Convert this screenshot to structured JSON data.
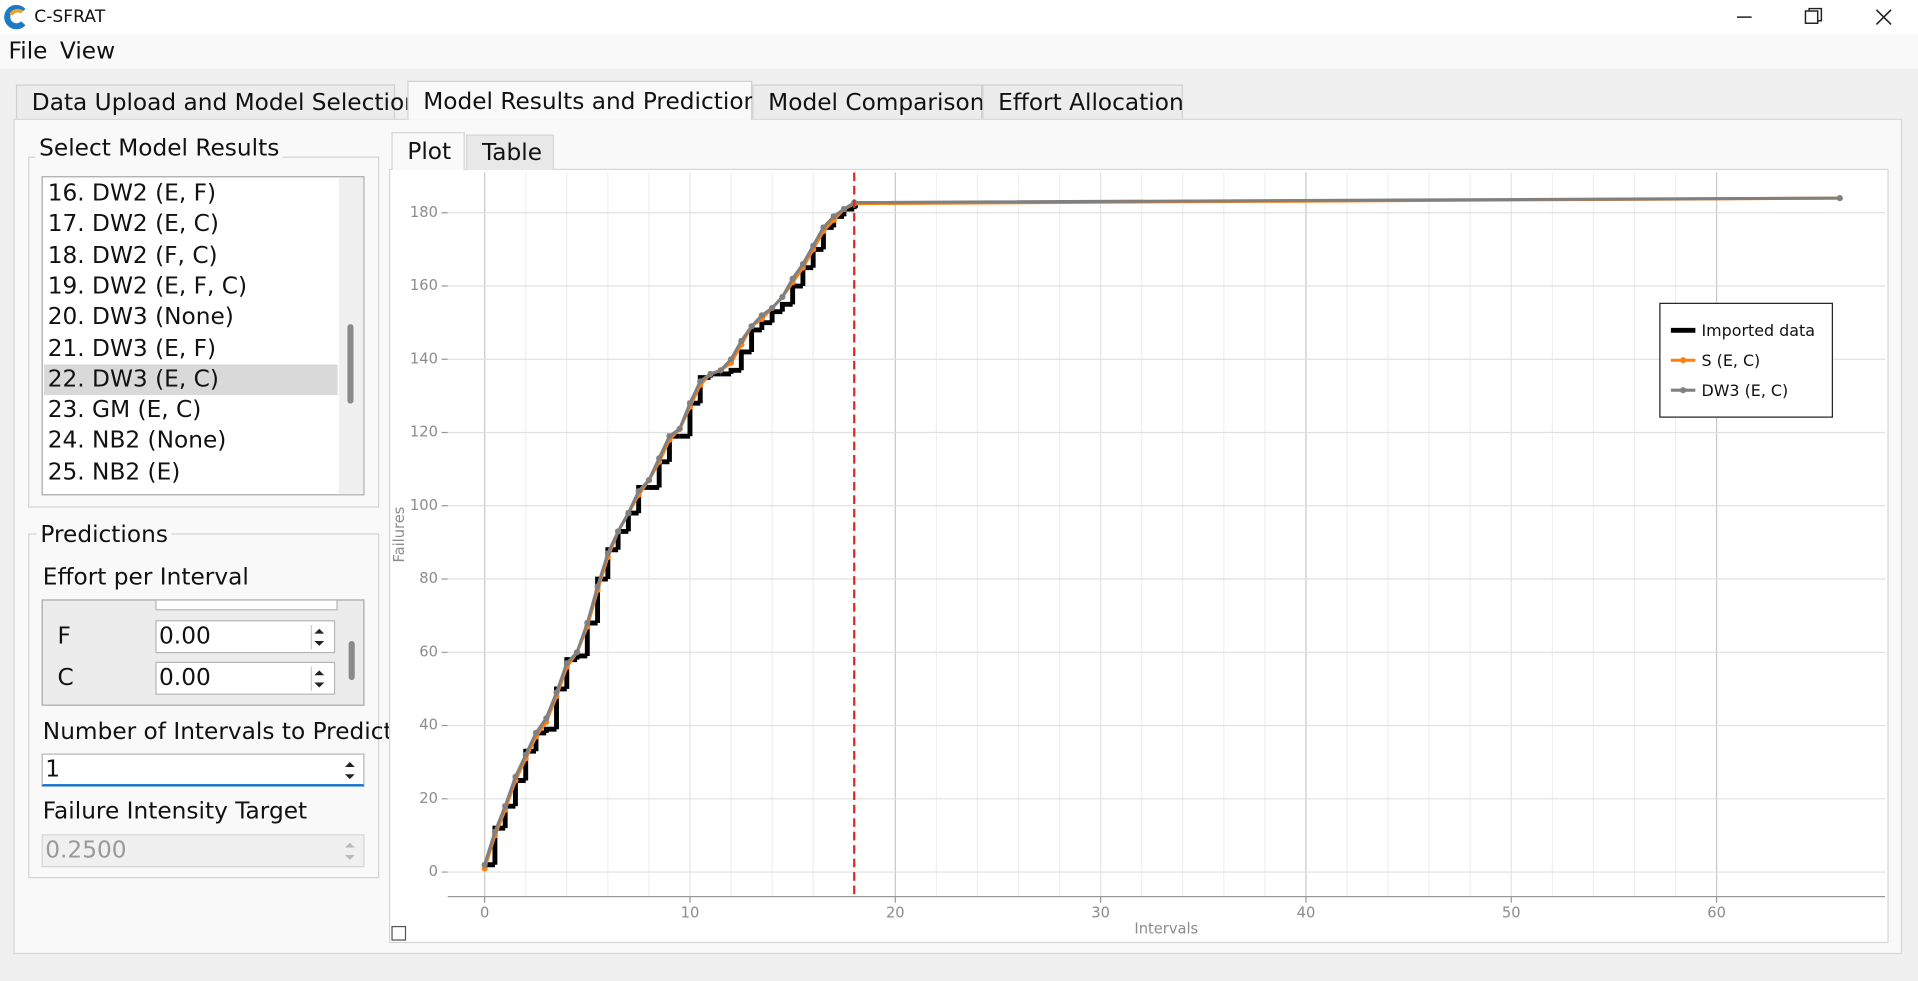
{
  "window": {
    "title": "C-SFRAT"
  },
  "menu": [
    "File",
    "View"
  ],
  "tabs": [
    "Data Upload and Model Selection",
    "Model Results and Predictions",
    "Model Comparison",
    "Effort Allocation"
  ],
  "model_results": {
    "title": "Select Model Results",
    "items": [
      "16. DW2 (E, F)",
      "17. DW2 (E, C)",
      "18. DW2 (F, C)",
      "19. DW2 (E, F, C)",
      "20. DW3 (None)",
      "21. DW3 (E, F)",
      "22. DW3 (E, C)",
      "23. GM (E, C)",
      "24. NB2 (None)",
      "25. NB2 (E)"
    ]
  },
  "predictions": {
    "title": "Predictions",
    "effort_label": "Effort per Interval",
    "effort_rows": [
      {
        "label": "F",
        "value": "0.00"
      },
      {
        "label": "C",
        "value": "0.00"
      }
    ],
    "intervals_label": "Number of Intervals to Predict",
    "intervals_value": "1",
    "target_label": "Failure Intensity Target",
    "target_value": "0.2500"
  },
  "plot_tabs": [
    "Plot",
    "Table"
  ],
  "chart_data": {
    "type": "line",
    "x_label": "Intervals",
    "y_label": "Failures",
    "x": [
      0,
      0.5,
      1,
      1.5,
      2,
      2.5,
      3,
      3.5,
      4,
      4.5,
      5,
      5.5,
      6,
      6.5,
      7,
      7.5,
      8,
      8.5,
      9,
      9.5,
      10,
      10.5,
      11,
      11.5,
      12,
      12.5,
      13,
      13.5,
      14,
      14.5,
      15,
      15.5,
      16,
      16.5,
      17,
      17.5,
      18,
      66
    ],
    "series": [
      {
        "name": "Imported data",
        "color": "#000000",
        "step": true,
        "values": [
          2,
          12,
          18,
          25,
          33,
          38,
          39,
          50,
          58,
          59,
          68,
          80,
          88,
          93,
          98,
          105,
          105,
          112,
          119,
          119,
          128,
          135,
          136,
          136,
          137,
          142,
          148,
          150,
          153,
          155,
          160,
          165,
          170,
          176,
          179,
          181,
          182,
          null
        ]
      },
      {
        "name": "S (E, C)",
        "color": "#ff7f0e",
        "values": [
          1,
          10,
          17,
          25,
          31,
          37,
          41,
          48,
          56,
          60,
          67,
          77,
          86,
          93,
          98,
          103,
          107,
          112,
          118,
          121,
          127,
          133,
          136,
          137,
          139,
          144,
          149,
          151,
          154,
          157,
          161,
          165,
          170,
          175,
          178,
          181,
          182.5,
          184
        ]
      },
      {
        "name": "DW3 (E, C)",
        "color": "#808080",
        "values": [
          2,
          11,
          18,
          26,
          32,
          38,
          42,
          49,
          57,
          60,
          68,
          78,
          87,
          93,
          98,
          104,
          107,
          113,
          119,
          121,
          128,
          134,
          136,
          137,
          140,
          145,
          149,
          152,
          154,
          157,
          162,
          166,
          171,
          176,
          179,
          181,
          182.8,
          184
        ]
      }
    ],
    "marker_line": {
      "value": 18,
      "color": "#d62728"
    },
    "xlim": [
      -1.8,
      68.2
    ],
    "ylim": [
      -6.7,
      191
    ],
    "xticks": [
      0,
      10,
      20,
      30,
      40,
      50,
      60
    ],
    "yticks": [
      0,
      20,
      40,
      60,
      80,
      100,
      120,
      140,
      160,
      180
    ],
    "grid": true,
    "legend": "upper right"
  }
}
